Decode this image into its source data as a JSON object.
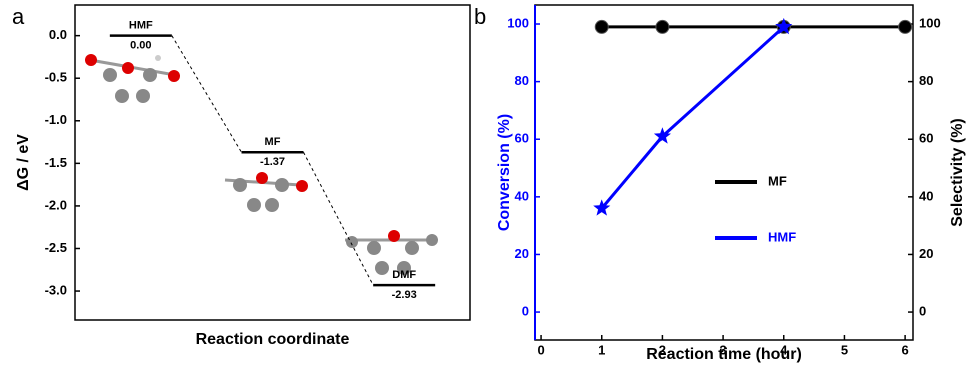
{
  "chart_data": [
    {
      "type": "energy",
      "panel_label": "a",
      "ylabel": "ΔG / eV",
      "xlabel": "Reaction coordinate",
      "categories": [
        "HMF",
        "MF",
        "DMF"
      ],
      "values": [
        0.0,
        -1.37,
        -2.93
      ],
      "value_labels": [
        "0.00",
        "-1.37",
        "-2.93"
      ],
      "color": "#000000",
      "ylim": [
        -3.34,
        0.36
      ],
      "yticks": [
        {
          "value": 0,
          "label": "0.0"
        },
        -0.5,
        {
          "value": -1,
          "label": "-1.0"
        },
        -1.5,
        {
          "value": -2,
          "label": "-2.0"
        },
        -2.5,
        {
          "value": -3,
          "label": "-3.0"
        }
      ]
    },
    {
      "type": "line",
      "panel_label": "b",
      "xlabel": "Reaction time (hour)",
      "ylabel": "Conversion (%)",
      "y2label": "Selectivity (%)",
      "ycolor": "#0000ff",
      "y2color": "#000000",
      "xlim": [
        -0.1,
        6.13
      ],
      "xticks": [
        0,
        1,
        2,
        3,
        4,
        5,
        6
      ],
      "ylim": [
        -9.7,
        106.6
      ],
      "yticks": [
        0,
        20,
        40,
        60,
        80,
        100
      ],
      "y2lim": [
        -9.7,
        106.6
      ],
      "y2ticks": [
        0,
        20,
        40,
        60,
        80,
        100
      ],
      "legend": "right",
      "series": [
        {
          "name": "MF",
          "color": "#000000",
          "marker": "circle",
          "axis": "y2",
          "x": [
            1,
            2,
            4,
            6
          ],
          "values": [
            99,
            99,
            99,
            99
          ]
        },
        {
          "name": "HMF",
          "color": "#0000ff",
          "marker": "star",
          "x": [
            1,
            2,
            4
          ],
          "values": [
            36,
            61,
            99
          ]
        }
      ]
    }
  ]
}
